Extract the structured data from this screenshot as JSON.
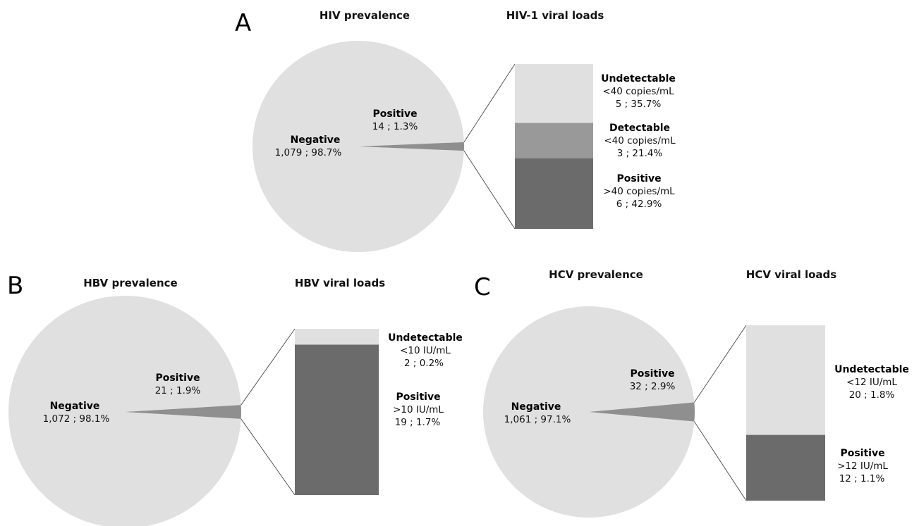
{
  "colors": {
    "pie_negative": "#e0e0e0",
    "slice_positive": "#8f8f8f",
    "bar_light": "#e0e0e0",
    "bar_mid": "#999999",
    "bar_dark": "#6b6b6b",
    "connector": "#555555"
  },
  "chart_data": [
    {
      "type": "bar-of-pie",
      "panel": "A",
      "pie_title": "HIV prevalence",
      "bar_title": "HIV-1 viral loads",
      "pie": [
        {
          "name": "Negative",
          "text": "1,079 ; 98.7%",
          "count": 1079,
          "percent": 98.7
        },
        {
          "name": "Positive",
          "text": "14 ; 1.3%",
          "count": 14,
          "percent": 1.3
        }
      ],
      "bar": [
        {
          "name": "Undetectable",
          "detail": "<40 copies/mL",
          "text": "5 ; 35.7%",
          "count": 5,
          "percent": 35.7,
          "color": "light"
        },
        {
          "name": "Detectable",
          "detail": "<40 copies/mL",
          "text": "3 ; 21.4%",
          "count": 3,
          "percent": 21.4,
          "color": "mid"
        },
        {
          "name": "Positive",
          "detail": ">40 copies/mL",
          "text": "6 ; 42.9%",
          "count": 6,
          "percent": 42.9,
          "color": "dark"
        }
      ]
    },
    {
      "type": "bar-of-pie",
      "panel": "B",
      "pie_title": "HBV prevalence",
      "bar_title": "HBV viral loads",
      "pie": [
        {
          "name": "Negative",
          "text": "1,072 ; 98.1%",
          "count": 1072,
          "percent": 98.1
        },
        {
          "name": "Positive",
          "text": "21 ; 1.9%",
          "count": 21,
          "percent": 1.9
        }
      ],
      "bar": [
        {
          "name": "Undetectable",
          "detail": "<10 IU/mL",
          "text": "2 ; 0.2%",
          "count": 2,
          "percent": 0.2,
          "color": "light"
        },
        {
          "name": "Positive",
          "detail": ">10 IU/mL",
          "text": "19 ; 1.7%",
          "count": 19,
          "percent": 1.7,
          "color": "dark"
        }
      ]
    },
    {
      "type": "bar-of-pie",
      "panel": "C",
      "pie_title": "HCV prevalence",
      "bar_title": "HCV viral loads",
      "pie": [
        {
          "name": "Negative",
          "text": "1,061 ; 97.1%",
          "count": 1061,
          "percent": 97.1
        },
        {
          "name": "Positive",
          "text": "32 ; 2.9%",
          "count": 32,
          "percent": 2.9
        }
      ],
      "bar": [
        {
          "name": "Undetectable",
          "detail": "<12 IU/mL",
          "text": "20 ; 1.8%",
          "count": 20,
          "percent": 1.8,
          "color": "light"
        },
        {
          "name": "Positive",
          "detail": ">12 IU/mL",
          "text": "12 ; 1.1%",
          "count": 12,
          "percent": 1.1,
          "color": "dark"
        }
      ]
    }
  ]
}
